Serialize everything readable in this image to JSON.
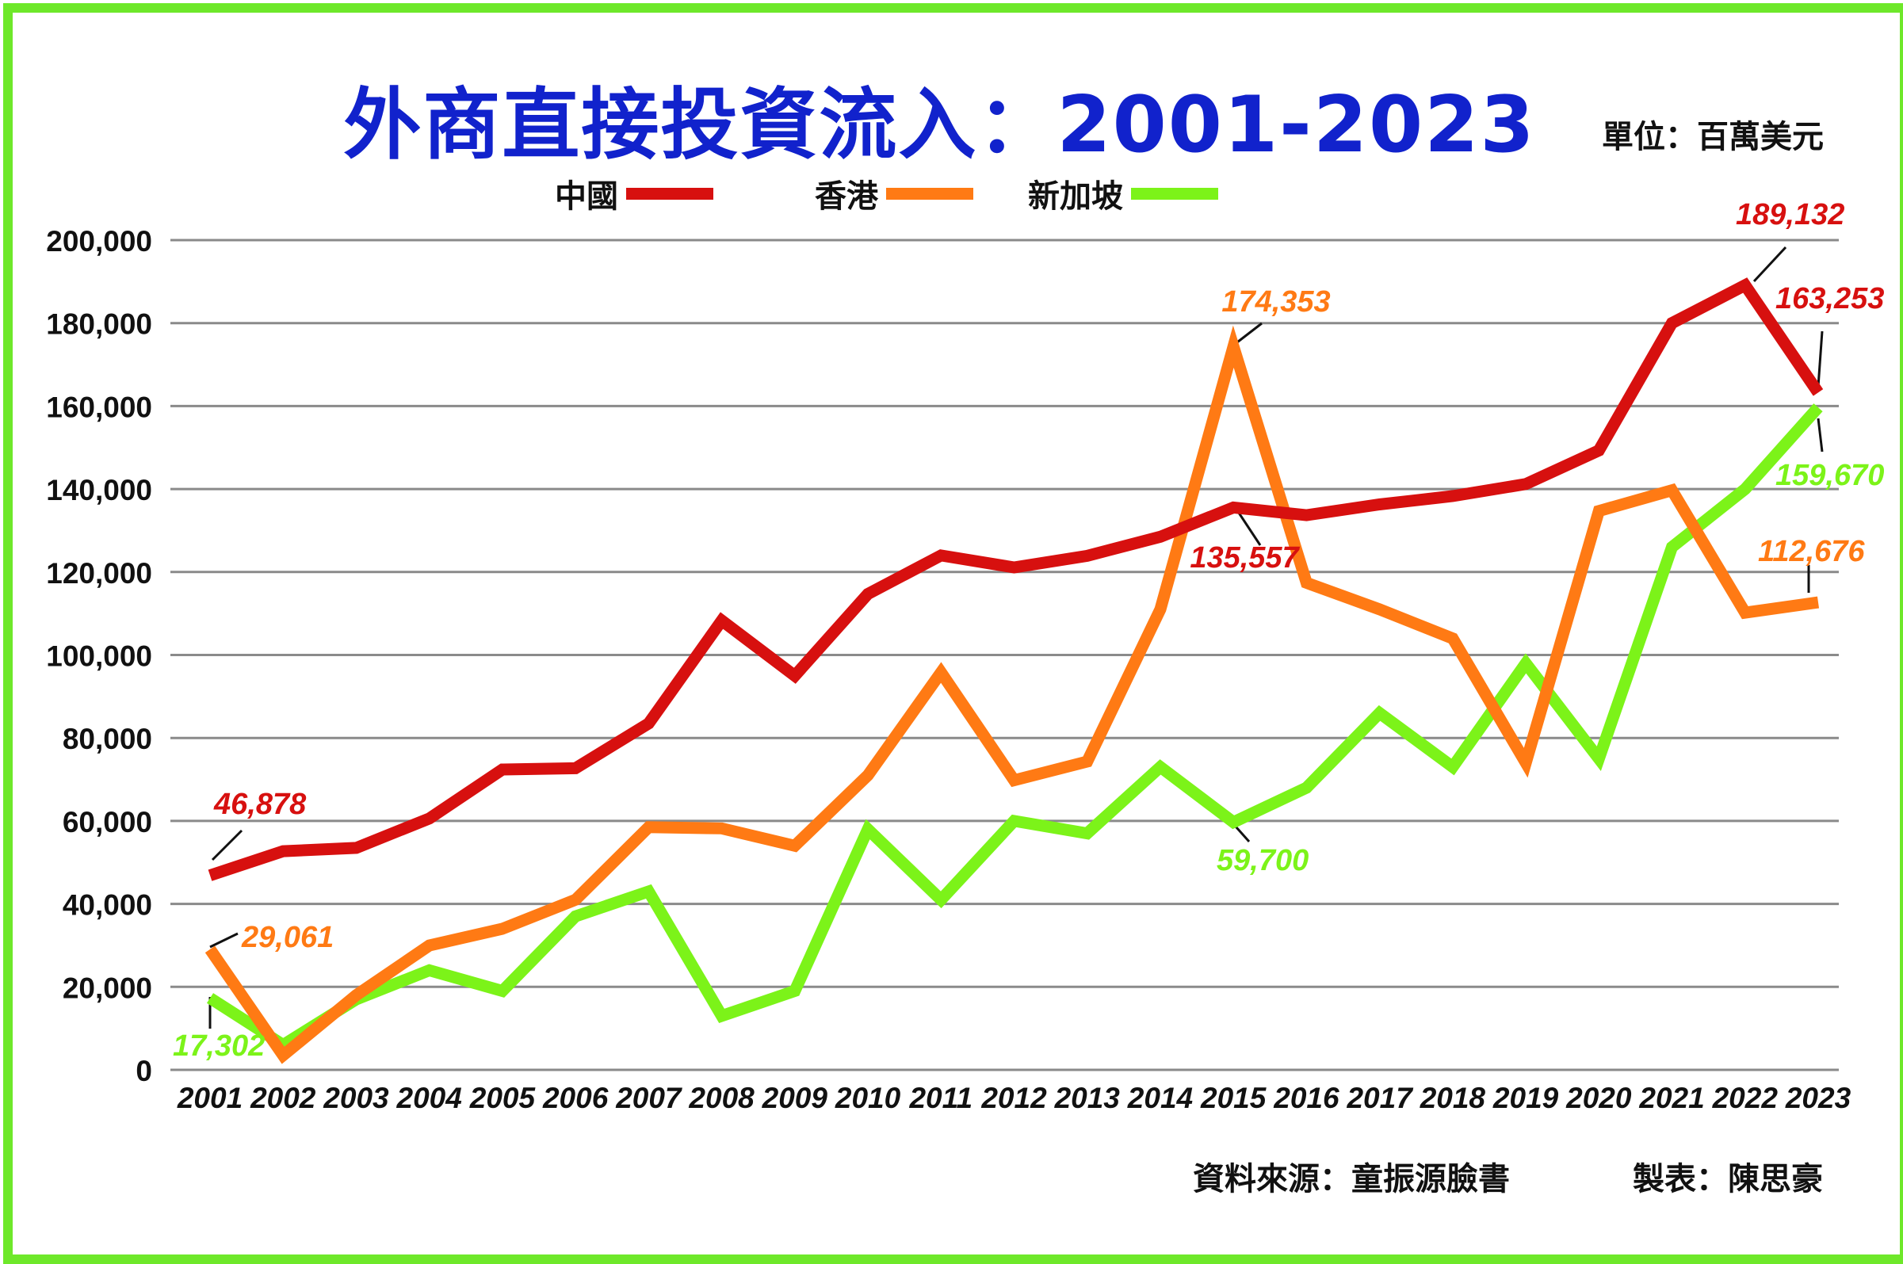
{
  "title": "外商直接投資流入：2001-2023",
  "unit_label": "單位：百萬美元",
  "source_label": "資料來源：童振源臉書",
  "maker_label": "製表：陳思豪",
  "colors": {
    "frame": "#6ee82a",
    "title": "#1122cc",
    "grid": "#8a8a8a"
  },
  "chart_data": {
    "type": "line",
    "title": "外商直接投資流入：2001-2023",
    "xlabel": "",
    "ylabel": "",
    "ylim": [
      0,
      200000
    ],
    "yticks": [
      0,
      20000,
      40000,
      60000,
      80000,
      100000,
      120000,
      140000,
      160000,
      180000,
      200000
    ],
    "ytick_labels": [
      "0",
      "20,000",
      "40,000",
      "60,000",
      "80,000",
      "100,000",
      "120,000",
      "140,000",
      "160,000",
      "180,000",
      "200,000"
    ],
    "grid": true,
    "legend_position": "top",
    "categories": [
      "2001",
      "2002",
      "2003",
      "2004",
      "2005",
      "2006",
      "2007",
      "2008",
      "2009",
      "2010",
      "2011",
      "2012",
      "2013",
      "2014",
      "2015",
      "2016",
      "2017",
      "2018",
      "2019",
      "2020",
      "2021",
      "2022",
      "2023"
    ],
    "series": [
      {
        "name": "中國",
        "color": "#d7100f",
        "values": [
          46878,
          52700,
          53500,
          60600,
          72400,
          72700,
          83500,
          108300,
          95000,
          114700,
          124000,
          121100,
          123900,
          128500,
          135557,
          133700,
          136300,
          138300,
          141200,
          149300,
          180000,
          189132,
          163253
        ]
      },
      {
        "name": "香港",
        "color": "#ff7a14",
        "values": [
          29061,
          3500,
          18000,
          30000,
          34000,
          41000,
          58500,
          58200,
          54000,
          71000,
          95800,
          69800,
          74300,
          111000,
          174353,
          117400,
          111000,
          104000,
          74000,
          134700,
          139700,
          110200,
          112676
        ]
      },
      {
        "name": "新加坡",
        "color": "#7cf319",
        "values": [
          17302,
          6000,
          17000,
          24000,
          19000,
          37000,
          43000,
          13000,
          19000,
          58000,
          41000,
          60000,
          57000,
          73000,
          59700,
          68000,
          86000,
          73000,
          98000,
          75000,
          126000,
          140000,
          159670
        ]
      }
    ],
    "annotations": [
      {
        "text": "46,878",
        "series": 0,
        "index": 0
      },
      {
        "text": "135,557",
        "series": 0,
        "index": 14
      },
      {
        "text": "189,132",
        "series": 0,
        "index": 21
      },
      {
        "text": "163,253",
        "series": 0,
        "index": 22
      },
      {
        "text": "29,061",
        "series": 1,
        "index": 0
      },
      {
        "text": "174,353",
        "series": 1,
        "index": 14
      },
      {
        "text": "112,676",
        "series": 1,
        "index": 22
      },
      {
        "text": "17,302",
        "series": 2,
        "index": 0
      },
      {
        "text": "59,700",
        "series": 2,
        "index": 14
      },
      {
        "text": "159,670",
        "series": 2,
        "index": 22
      }
    ]
  }
}
